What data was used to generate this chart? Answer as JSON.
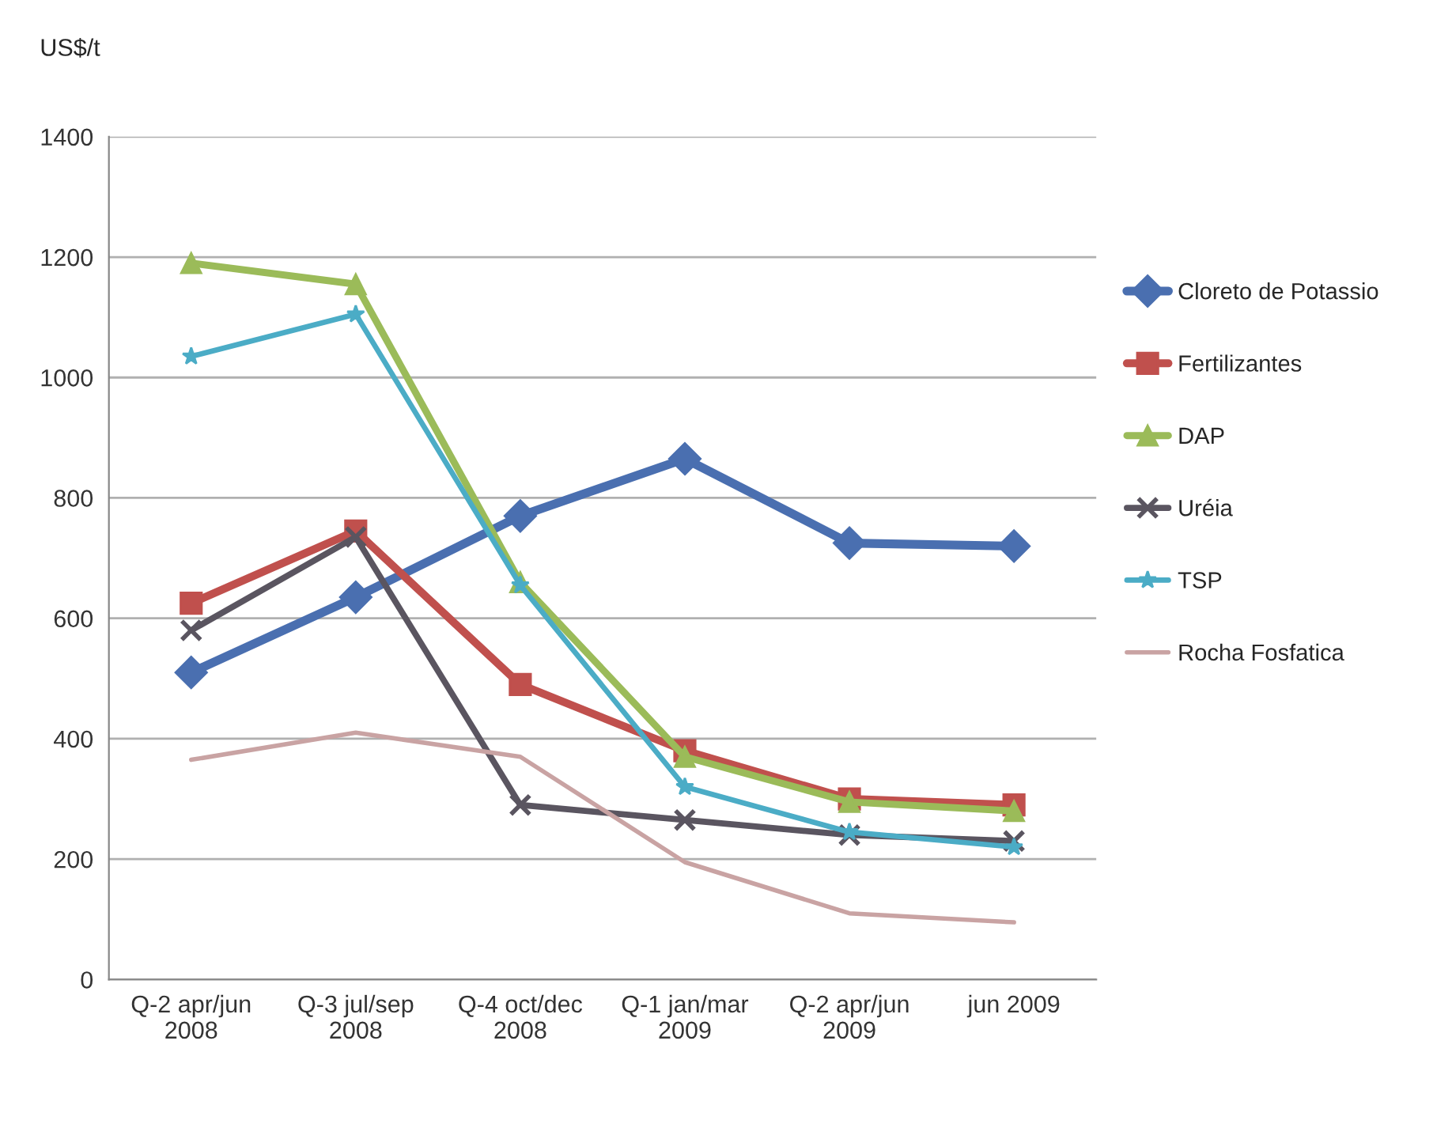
{
  "chart_data": {
    "type": "line",
    "ylabel": "US$/t",
    "categories": [
      "Q-2 apr/jun\n2008",
      "Q-3 jul/sep\n2008",
      "Q-4 oct/dec\n2008",
      "Q-1 jan/mar\n2009",
      "Q-2 apr/jun\n2009",
      "jun 2009"
    ],
    "series": [
      {
        "name": "Cloreto de Potassio",
        "color": "#4a6fb0",
        "marker": "diamond",
        "values": [
          510,
          635,
          770,
          865,
          725,
          720
        ]
      },
      {
        "name": "Fertilizantes",
        "color": "#c0504d",
        "marker": "square",
        "values": [
          625,
          745,
          490,
          380,
          300,
          290
        ]
      },
      {
        "name": "DAP",
        "color": "#9bbb59",
        "marker": "triangle",
        "values": [
          1190,
          1155,
          660,
          370,
          295,
          280
        ]
      },
      {
        "name": "Uréia",
        "color": "#5a5560",
        "marker": "cross",
        "values": [
          580,
          735,
          290,
          265,
          240,
          230
        ]
      },
      {
        "name": "TSP",
        "color": "#4bacc6",
        "marker": "star",
        "values": [
          1035,
          1105,
          655,
          320,
          245,
          220
        ]
      },
      {
        "name": "Rocha Fosfatica",
        "color": "#c9a3a3",
        "marker": "none",
        "values": [
          365,
          410,
          370,
          195,
          110,
          95
        ]
      }
    ],
    "ylim": [
      0,
      1400
    ],
    "yticks": [
      0,
      200,
      400,
      600,
      800,
      1000,
      1200,
      1400
    ],
    "grid": "y",
    "legend": "right",
    "line_style": "solid"
  }
}
